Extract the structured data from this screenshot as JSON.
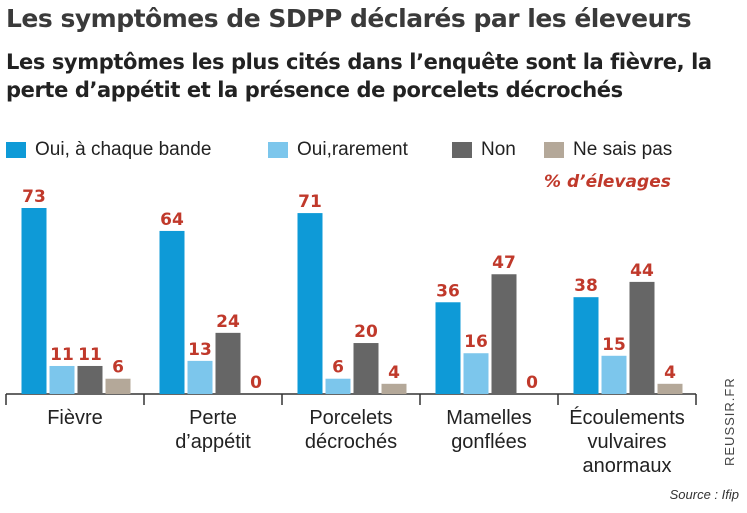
{
  "title": "Les symptômes de SDPP déclarés par les éleveurs",
  "subtitle": "Les symptômes les plus cités dans l’enquête sont la fièvre, la perte d’appétit et la présence de porcelets décrochés",
  "unit_label": "% d’élevages",
  "watermark": "REUSSIR.FR",
  "source": "Source : Ifip",
  "colors": {
    "series1": "#0e9ad7",
    "series2": "#7cc6ec",
    "series3": "#666666",
    "series4": "#b4a899",
    "value_label": "#c0392b",
    "axis": "#333333"
  },
  "legend": [
    {
      "label": "Oui, à chaque bande"
    },
    {
      "label": "Oui,rarement"
    },
    {
      "label": "Non"
    },
    {
      "label": "Ne sais pas"
    }
  ],
  "chart_data": {
    "type": "bar",
    "title": "Les symptômes de SDPP déclarés par les éleveurs",
    "xlabel": "",
    "ylabel": "% d’élevages",
    "ylim": [
      0,
      75
    ],
    "grid": false,
    "legend_position": "top",
    "categories": [
      [
        "Fièvre"
      ],
      [
        "Perte",
        "d’appétit"
      ],
      [
        "Porcelets",
        "décrochés"
      ],
      [
        "Mamelles",
        "gonflées"
      ],
      [
        "Écoulements",
        "vulvaires",
        "anormaux"
      ]
    ],
    "series": [
      {
        "name": "Oui, à chaque bande",
        "values": [
          73,
          64,
          71,
          36,
          38
        ]
      },
      {
        "name": "Oui,rarement",
        "values": [
          11,
          13,
          6,
          16,
          15
        ]
      },
      {
        "name": "Non",
        "values": [
          11,
          24,
          20,
          47,
          44
        ]
      },
      {
        "name": "Ne sais pas",
        "values": [
          6,
          0,
          4,
          0,
          4
        ]
      }
    ]
  }
}
